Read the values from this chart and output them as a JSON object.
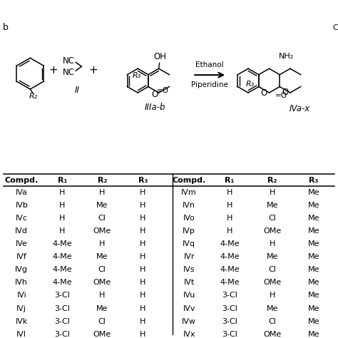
{
  "table_headers_left": [
    "Compd.",
    "R₁",
    "R₂",
    "R₃"
  ],
  "table_headers_right": [
    "Compd.",
    "R₁",
    "R₂",
    "R₃"
  ],
  "table_data": [
    [
      "IVa",
      "H",
      "H",
      "H",
      "IVm",
      "H",
      "H",
      "Me"
    ],
    [
      "IVb",
      "H",
      "Me",
      "H",
      "IVn",
      "H",
      "Me",
      "Me"
    ],
    [
      "IVc",
      "H",
      "Cl",
      "H",
      "IVo",
      "H",
      "Cl",
      "Me"
    ],
    [
      "IVd",
      "H",
      "OMe",
      "H",
      "IVp",
      "H",
      "OMe",
      "Me"
    ],
    [
      "IVe",
      "4-Me",
      "H",
      "H",
      "IVq",
      "4-Me",
      "H",
      "Me"
    ],
    [
      "IVf",
      "4-Me",
      "Me",
      "H",
      "IVr",
      "4-Me",
      "Me",
      "Me"
    ],
    [
      "IVg",
      "4-Me",
      "Cl",
      "H",
      "IVs",
      "4-Me",
      "Cl",
      "Me"
    ],
    [
      "IVh",
      "4-Me",
      "OMe",
      "H",
      "IVt",
      "4-Me",
      "OMe",
      "Me"
    ],
    [
      "IVi",
      "3-Cl",
      "H",
      "H",
      "IVu",
      "3-Cl",
      "H",
      "Me"
    ],
    [
      "IVj",
      "3-Cl",
      "Me",
      "H",
      "IVv",
      "3-Cl",
      "Me",
      "Me"
    ],
    [
      "IVk",
      "3-Cl",
      "Cl",
      "H",
      "IVw",
      "3-Cl",
      "Cl",
      "Me"
    ],
    [
      "IVl",
      "3-Cl",
      "OMe",
      "H",
      "IVx",
      "3-Cl",
      "OMe",
      "Me"
    ]
  ],
  "bg_color": "#ffffff",
  "text_color": "#000000",
  "label_II": "II",
  "label_IIIab": "IIIa-b",
  "label_IVax": "IVa-x",
  "reagent_top": "Ethanol",
  "reagent_bot": "Piperidine"
}
